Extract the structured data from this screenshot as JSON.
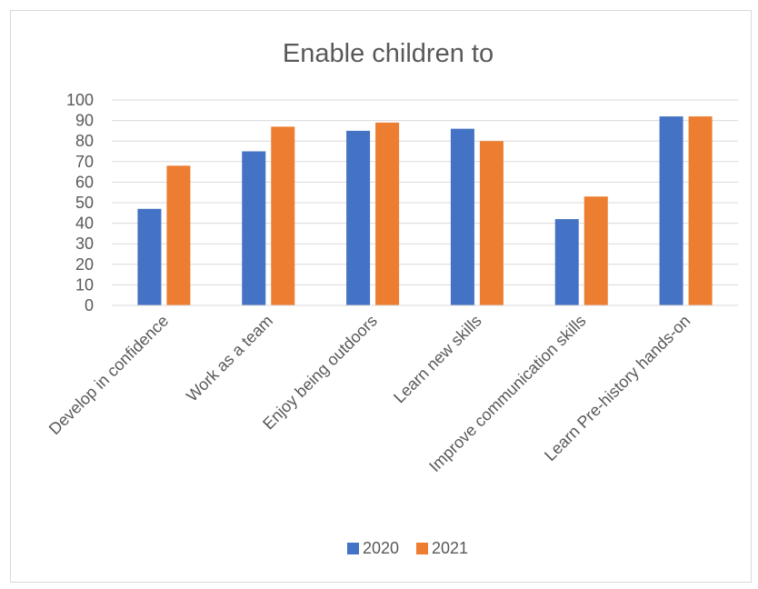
{
  "chart_data": {
    "type": "bar",
    "title": "Enable children to",
    "xlabel": "",
    "ylabel": "",
    "ylim": [
      0,
      100
    ],
    "yticks": [
      0,
      10,
      20,
      30,
      40,
      50,
      60,
      70,
      80,
      90,
      100
    ],
    "grid": true,
    "legend_position": "bottom",
    "categories": [
      "Develop in confidence",
      "Work as a team",
      "Enjoy being outdoors",
      "Learn new skills",
      "Improve communication skills",
      "Learn Pre-history hands-on"
    ],
    "series": [
      {
        "name": "2020",
        "color": "#4472c4",
        "values": [
          47,
          75,
          85,
          86,
          42,
          92
        ]
      },
      {
        "name": "2021",
        "color": "#ed7d31",
        "values": [
          68,
          87,
          89,
          80,
          53,
          92
        ]
      }
    ]
  }
}
